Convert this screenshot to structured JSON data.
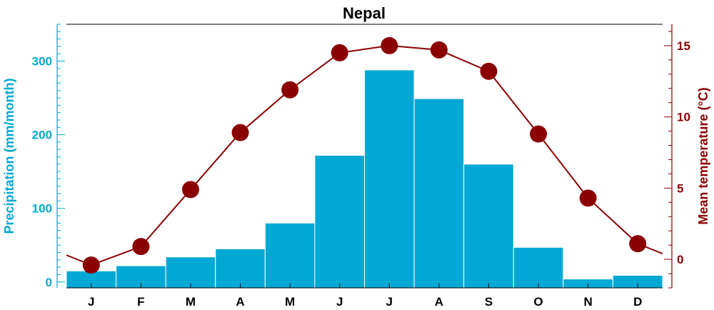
{
  "chart_data": {
    "type": "bar",
    "title": "Nepal",
    "categories": [
      "J",
      "F",
      "M",
      "A",
      "M",
      "J",
      "J",
      "A",
      "S",
      "O",
      "N",
      "D"
    ],
    "series": [
      {
        "name": "Precipitation",
        "type": "bar",
        "axis": "left",
        "values": [
          15,
          22,
          34,
          45,
          80,
          172,
          288,
          249,
          160,
          47,
          4,
          9
        ]
      },
      {
        "name": "Mean temperature",
        "type": "line",
        "axis": "right",
        "values": [
          -0.4,
          0.9,
          4.9,
          8.9,
          11.9,
          14.5,
          15.0,
          14.7,
          13.2,
          8.8,
          4.3,
          1.1
        ],
        "line_extension": {
          "start": 0.3,
          "end": 0.4
        }
      }
    ],
    "y_left": {
      "label": "Precipitation (mm/month)",
      "ylim": [
        -8,
        350
      ],
      "major_ticks": [
        0,
        100,
        200,
        300
      ],
      "minor_step": 10
    },
    "y_right": {
      "label": "Mean temperature (°C)",
      "ylim": [
        -2,
        16.5
      ],
      "major_ticks": [
        0,
        5,
        10,
        15
      ],
      "minor_step": 1
    },
    "grid": false,
    "colors": {
      "bar": "#00a8d4",
      "line": "#8b0000",
      "left_axis": "#00a8d4",
      "right_axis": "#8b0000"
    }
  }
}
